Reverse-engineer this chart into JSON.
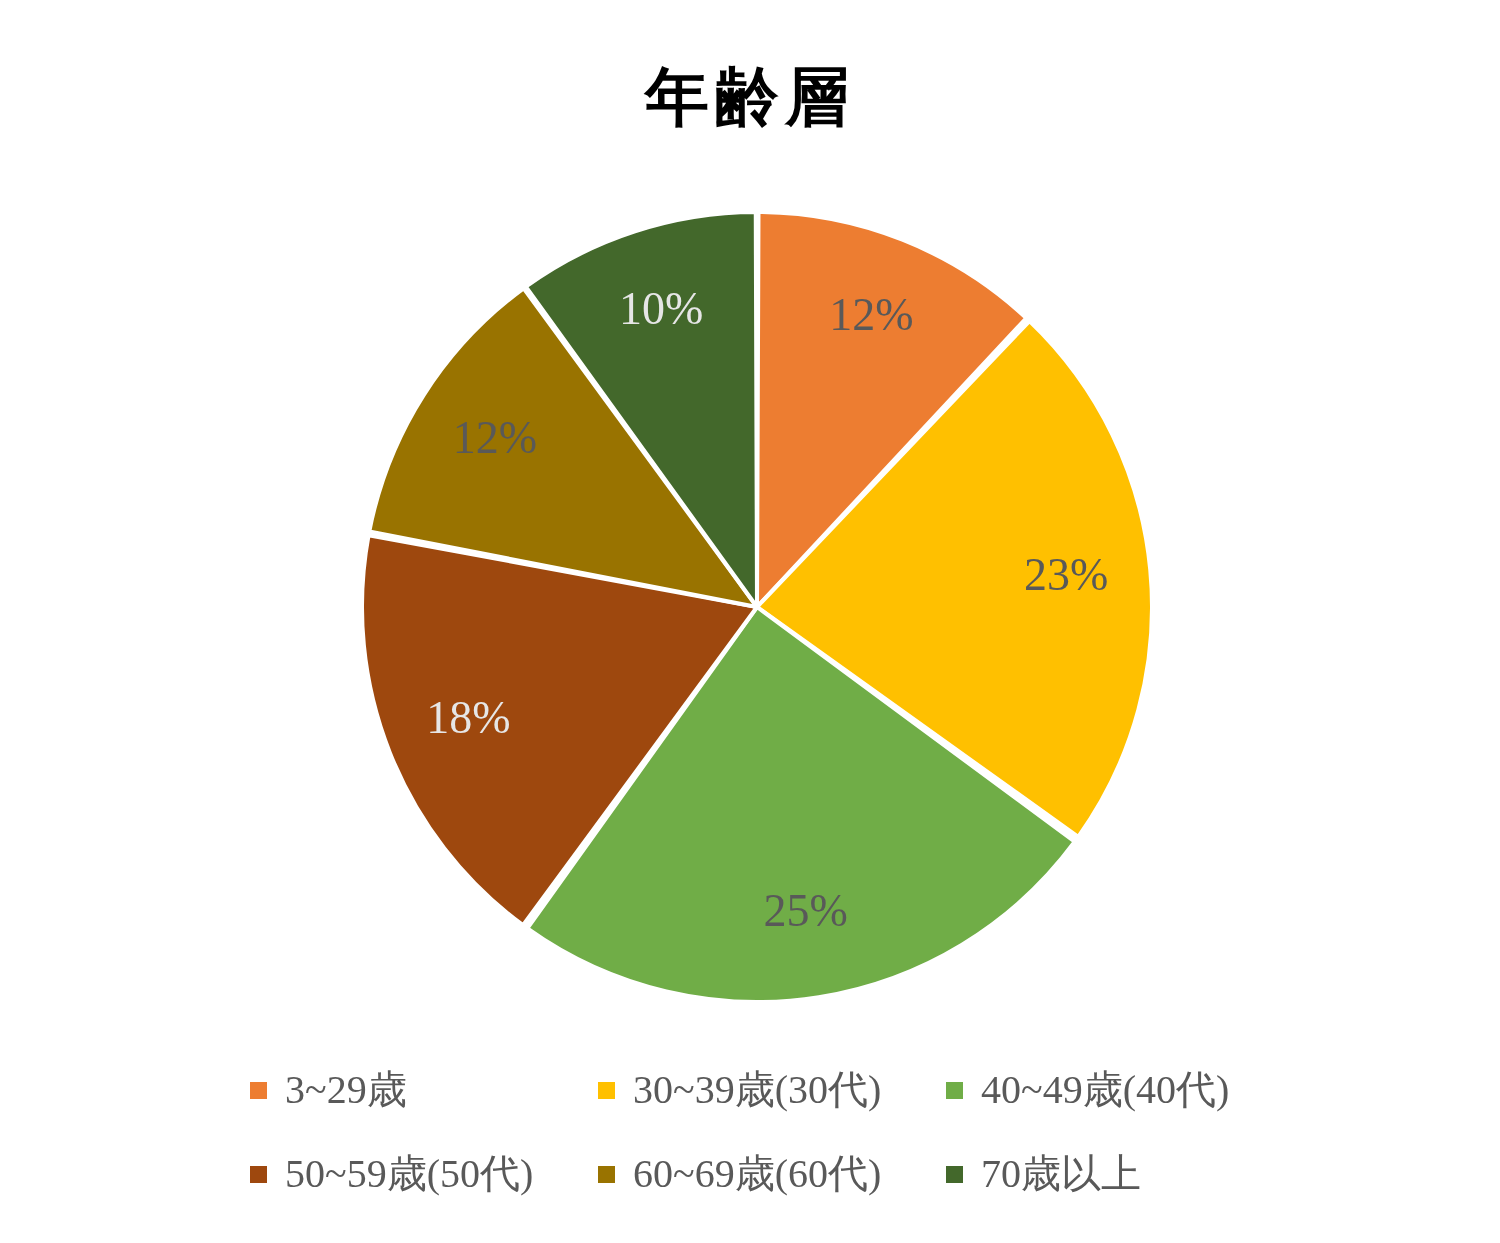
{
  "chart_data": {
    "type": "pie",
    "title": "年齢層",
    "categories": [
      "3~29歳",
      "30~39歳(30代)",
      "40~49歳(40代)",
      "50~59歳(50代)",
      "60~69歳(60代)",
      "70歳以上"
    ],
    "values": [
      12,
      23,
      25,
      18,
      12,
      10
    ],
    "colors": [
      "#ed7d31",
      "#ffc000",
      "#70ad47",
      "#9e480e",
      "#997300",
      "#43682b"
    ],
    "value_labels": [
      "12%",
      "23%",
      "25%",
      "18%",
      "12%",
      "10%"
    ],
    "legend": "bottom"
  }
}
